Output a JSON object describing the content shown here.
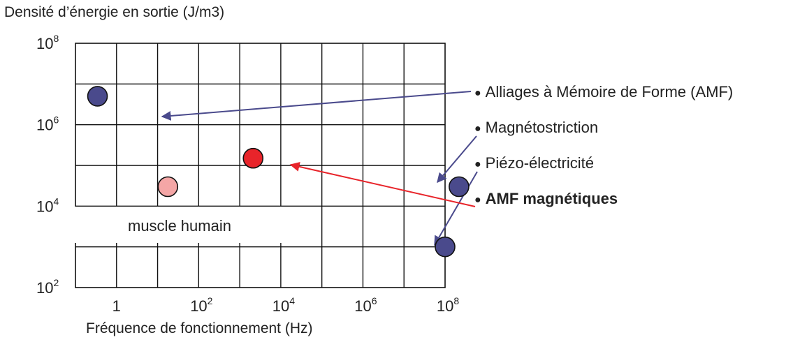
{
  "chart_data": {
    "type": "scatter",
    "title": "",
    "ylabel": "Densité d’énergie en sortie (J/m3)",
    "xlabel": "Fréquence de fonctionnement (Hz)",
    "x_scale": "log",
    "y_scale": "log",
    "xlim": [
      1,
      100000000
    ],
    "ylim": [
      100,
      100000000
    ],
    "x_ticks": [
      {
        "value": 1,
        "base": "1",
        "exp": ""
      },
      {
        "value": 100,
        "base": "10",
        "exp": "2"
      },
      {
        "value": 10000,
        "base": "10",
        "exp": "4"
      },
      {
        "value": 1000000,
        "base": "10",
        "exp": "6"
      },
      {
        "value": 100000000,
        "base": "10",
        "exp": "8"
      }
    ],
    "y_ticks": [
      {
        "value": 100,
        "base": "10",
        "exp": "2"
      },
      {
        "value": 10000,
        "base": "10",
        "exp": "4"
      },
      {
        "value": 1000000,
        "base": "10",
        "exp": "6"
      },
      {
        "value": 100000000,
        "base": "10",
        "exp": "8"
      }
    ],
    "grid": true,
    "region_label": "muscle humain",
    "colors": {
      "navy": "#4a4a8c",
      "red": "#e8242a",
      "pink": "#f4a6a6",
      "arrow_navy": "#4a4a8c",
      "arrow_red": "#e8242a"
    },
    "points": [
      {
        "id": "amf",
        "x": 3,
        "y": 5000000,
        "color": "navy"
      },
      {
        "id": "muscle",
        "x": 100,
        "y": 30000,
        "color": "pink"
      },
      {
        "id": "amf_mag",
        "x": 7000,
        "y": 150000,
        "color": "red"
      },
      {
        "id": "magneto",
        "x": 200000000,
        "y": 30000,
        "color": "navy"
      },
      {
        "id": "piezo",
        "x": 100000000,
        "y": 1000,
        "color": "navy"
      }
    ],
    "legend": [
      {
        "id": "amf",
        "label": "Alliages à Mémoire de Forme (AMF)",
        "bold": false,
        "bullet": "●"
      },
      {
        "id": "magneto",
        "label": "Magnétostriction",
        "bold": false,
        "bullet": "●"
      },
      {
        "id": "piezo",
        "label": "Piézo-électricité",
        "bold": false,
        "bullet": "●"
      },
      {
        "id": "amf_mag",
        "label": "AMF magnétiques",
        "bold": true,
        "bullet": "●"
      }
    ],
    "arrows": [
      {
        "from": "amf",
        "to": "amf",
        "color": "arrow_navy"
      },
      {
        "from": "magneto",
        "to": "magneto",
        "color": "arrow_navy"
      },
      {
        "from": "piezo",
        "to": "piezo",
        "color": "arrow_navy"
      },
      {
        "from": "amf_mag",
        "to": "amf_mag",
        "color": "arrow_red"
      }
    ]
  }
}
